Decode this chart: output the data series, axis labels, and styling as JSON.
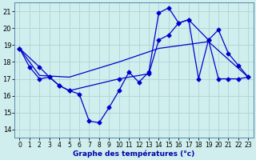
{
  "xlabel": "Graphe des températures (°c)",
  "xlim": [
    -0.5,
    23.5
  ],
  "ylim": [
    13.5,
    21.5
  ],
  "yticks": [
    14,
    15,
    16,
    17,
    18,
    19,
    20,
    21
  ],
  "xticks": [
    0,
    1,
    2,
    3,
    4,
    5,
    6,
    7,
    8,
    9,
    10,
    11,
    12,
    13,
    14,
    15,
    16,
    17,
    18,
    19,
    20,
    21,
    22,
    23
  ],
  "background_color": "#d0eeee",
  "line_color": "#0000cc",
  "grid_color": "#b0d8d8",
  "series1_x": [
    0,
    1,
    2,
    3,
    4,
    5,
    6,
    7,
    8,
    9,
    10,
    11,
    12,
    13,
    14,
    15,
    16,
    17,
    18,
    19,
    20,
    21,
    22,
    23
  ],
  "series1_y": [
    18.8,
    17.7,
    17.0,
    17.1,
    16.6,
    16.3,
    16.1,
    14.5,
    14.4,
    15.3,
    16.3,
    17.4,
    16.8,
    17.4,
    20.9,
    21.2,
    20.3,
    20.5,
    17.0,
    19.3,
    19.9,
    18.5,
    17.8,
    17.1
  ],
  "series2_x": [
    0,
    2,
    3,
    4,
    5,
    10,
    13,
    14,
    15,
    16,
    17,
    19,
    20,
    21,
    22,
    23
  ],
  "series2_y": [
    18.8,
    17.7,
    17.1,
    16.6,
    16.3,
    17.0,
    17.3,
    19.3,
    19.6,
    20.3,
    20.5,
    19.3,
    17.0,
    17.0,
    17.0,
    17.1
  ],
  "series3_x": [
    0,
    2,
    5,
    10,
    14,
    19,
    23
  ],
  "series3_y": [
    18.8,
    17.2,
    17.1,
    18.0,
    18.8,
    19.2,
    17.1
  ]
}
